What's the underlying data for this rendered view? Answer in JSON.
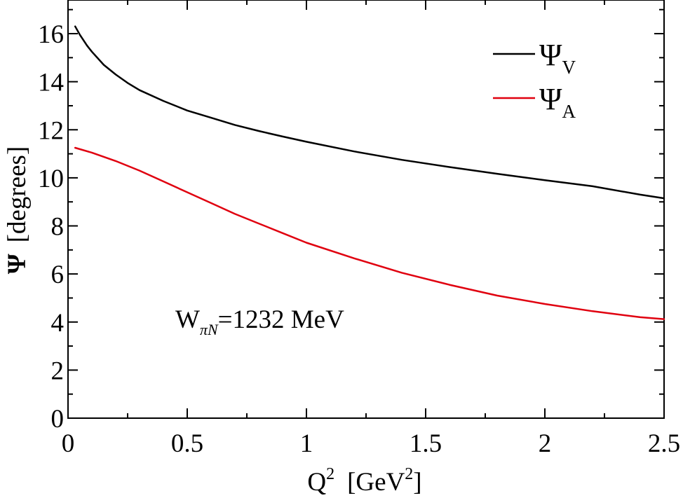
{
  "chart_data": {
    "type": "line",
    "xlabel": {
      "base": "Q",
      "sup1": "2",
      "unit_open": "[GeV",
      "sup2": "2",
      "unit_close": "]"
    },
    "ylabel": {
      "symbol": "Ψ",
      "unit": "[degrees]"
    },
    "xlim": [
      0,
      2.5
    ],
    "ylim": [
      0,
      17.4
    ],
    "x_ticks": [
      0,
      0.5,
      1,
      1.5,
      2,
      2.5
    ],
    "x_tick_labels": [
      "0",
      "0.5",
      "1",
      "1.5",
      "2",
      "2.5"
    ],
    "y_ticks": [
      0,
      2,
      4,
      6,
      8,
      10,
      12,
      14,
      16
    ],
    "y_tick_labels": [
      "0",
      "2",
      "4",
      "6",
      "8",
      "10",
      "12",
      "14",
      "16"
    ],
    "grid": false,
    "legend_position": "top-right",
    "annotation": {
      "base": "W",
      "sub": "πN",
      "rest": "=1232 MeV"
    },
    "series": [
      {
        "name": "Ψ",
        "name_sub": "V",
        "color": "#000000",
        "x": [
          0.03,
          0.05,
          0.08,
          0.1,
          0.15,
          0.2,
          0.25,
          0.3,
          0.4,
          0.5,
          0.6,
          0.7,
          0.8,
          0.9,
          1.0,
          1.2,
          1.4,
          1.6,
          1.8,
          2.0,
          2.2,
          2.4,
          2.5
        ],
        "y": [
          16.3,
          15.95,
          15.5,
          15.25,
          14.7,
          14.3,
          13.95,
          13.65,
          13.2,
          12.8,
          12.5,
          12.2,
          11.95,
          11.72,
          11.5,
          11.1,
          10.75,
          10.45,
          10.17,
          9.9,
          9.65,
          9.3,
          9.15
        ]
      },
      {
        "name": "Ψ",
        "name_sub": "A",
        "color": "#e0000f",
        "x": [
          0.03,
          0.1,
          0.2,
          0.3,
          0.4,
          0.5,
          0.6,
          0.7,
          0.8,
          0.9,
          1.0,
          1.2,
          1.4,
          1.6,
          1.8,
          2.0,
          2.2,
          2.4,
          2.5
        ],
        "y": [
          11.25,
          11.05,
          10.7,
          10.3,
          9.85,
          9.4,
          8.95,
          8.5,
          8.1,
          7.7,
          7.3,
          6.65,
          6.05,
          5.55,
          5.1,
          4.75,
          4.45,
          4.2,
          4.12
        ]
      }
    ]
  }
}
